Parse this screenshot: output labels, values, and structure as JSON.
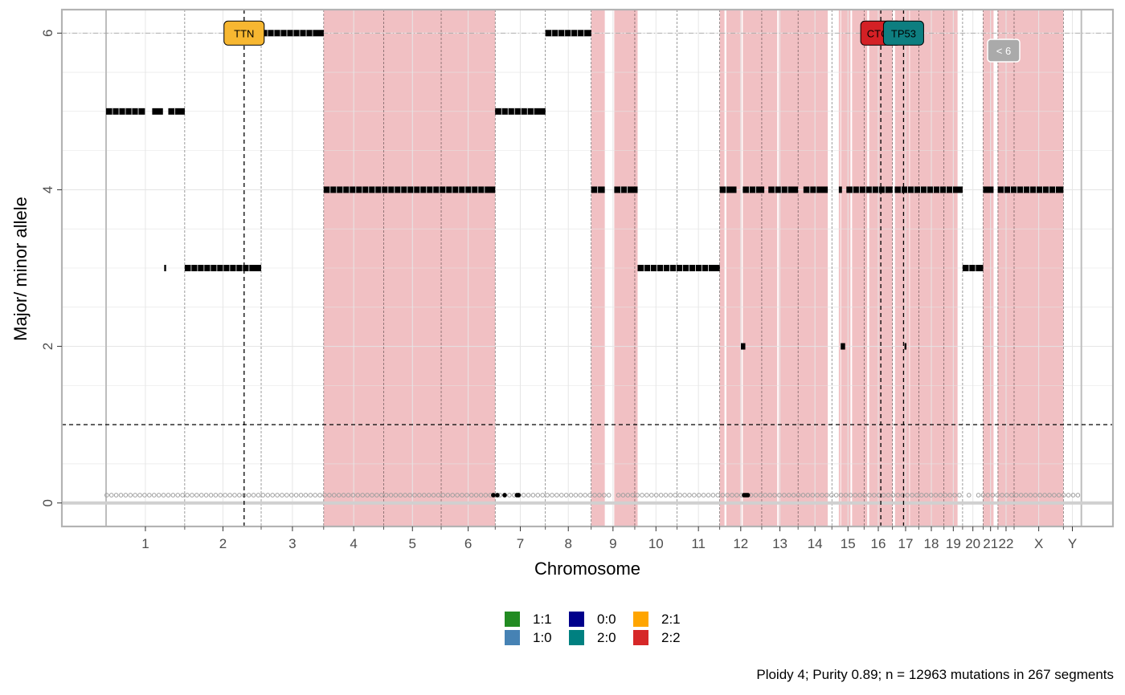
{
  "chart_data": {
    "type": "scatter",
    "xlabel": "Chromosome",
    "ylabel": "Major/ minor allele",
    "ylim": [
      -0.3,
      6.3
    ],
    "yticks": [
      0,
      2,
      4,
      6
    ],
    "grid": true,
    "legend_position": "bottom",
    "caption": "Ploidy 4; Purity  0.89; n = 12963 mutations in 267 segments",
    "chromosomes": [
      {
        "label": "1",
        "start": 0,
        "end": 249
      },
      {
        "label": "2",
        "start": 249,
        "end": 491
      },
      {
        "label": "3",
        "start": 491,
        "end": 689
      },
      {
        "label": "4",
        "start": 689,
        "end": 879
      },
      {
        "label": "5",
        "start": 879,
        "end": 1061
      },
      {
        "label": "6",
        "start": 1061,
        "end": 1232
      },
      {
        "label": "7",
        "start": 1232,
        "end": 1391
      },
      {
        "label": "8",
        "start": 1391,
        "end": 1536
      },
      {
        "label": "9",
        "start": 1536,
        "end": 1674
      },
      {
        "label": "10",
        "start": 1674,
        "end": 1808
      },
      {
        "label": "11",
        "start": 1808,
        "end": 1943
      },
      {
        "label": "12",
        "start": 1943,
        "end": 2076
      },
      {
        "label": "13",
        "start": 2076,
        "end": 2191
      },
      {
        "label": "14",
        "start": 2191,
        "end": 2298
      },
      {
        "label": "15",
        "start": 2298,
        "end": 2400
      },
      {
        "label": "16",
        "start": 2400,
        "end": 2490
      },
      {
        "label": "17",
        "start": 2490,
        "end": 2573
      },
      {
        "label": "18",
        "start": 2573,
        "end": 2653
      },
      {
        "label": "19",
        "start": 2653,
        "end": 2712
      },
      {
        "label": "20",
        "start": 2712,
        "end": 2777
      },
      {
        "label": "21",
        "start": 2777,
        "end": 2824
      },
      {
        "label": "22",
        "start": 2824,
        "end": 2875
      },
      {
        "label": "X",
        "start": 2875,
        "end": 3031
      },
      {
        "label": "Y",
        "start": 3031,
        "end": 3088
      }
    ],
    "ploidy_line": 6,
    "reference_line": 1,
    "highlight_regions": [
      [
        689,
        1232
      ],
      [
        1536,
        1579
      ],
      [
        1609,
        1683
      ],
      [
        1943,
        1958
      ],
      [
        1964,
        2012
      ],
      [
        2016,
        2125
      ],
      [
        2130,
        2285
      ],
      [
        2320,
        2325
      ],
      [
        2327,
        2357
      ],
      [
        2362,
        2410
      ],
      [
        2416,
        2490
      ],
      [
        2498,
        2543
      ],
      [
        2545,
        2696
      ],
      [
        2777,
        2810
      ],
      [
        2823,
        3031
      ]
    ],
    "segments": [
      {
        "x0": 0,
        "x1": 123,
        "y": 5
      },
      {
        "x0": 146,
        "x1": 180,
        "y": 5
      },
      {
        "x0": 197,
        "x1": 249,
        "y": 5
      },
      {
        "x0": 249,
        "x1": 491,
        "y": 3
      },
      {
        "x0": 491,
        "x1": 689,
        "y": 6
      },
      {
        "x0": 689,
        "x1": 1232,
        "y": 4
      },
      {
        "x0": 1232,
        "x1": 1391,
        "y": 5
      },
      {
        "x0": 1391,
        "x1": 1536,
        "y": 6
      },
      {
        "x0": 1536,
        "x1": 1579,
        "y": 4
      },
      {
        "x0": 1609,
        "x1": 1683,
        "y": 4
      },
      {
        "x0": 1683,
        "x1": 1943,
        "y": 3
      },
      {
        "x0": 1943,
        "x1": 1996,
        "y": 4
      },
      {
        "x0": 2016,
        "x1": 2084,
        "y": 4
      },
      {
        "x0": 2097,
        "x1": 2191,
        "y": 4
      },
      {
        "x0": 2208,
        "x1": 2285,
        "y": 4
      },
      {
        "x0": 2320,
        "x1": 2330,
        "y": 4
      },
      {
        "x0": 2344,
        "x1": 2490,
        "y": 4
      },
      {
        "x0": 2497,
        "x1": 2712,
        "y": 4
      },
      {
        "x0": 2712,
        "x1": 2777,
        "y": 3
      },
      {
        "x0": 2777,
        "x1": 2810,
        "y": 4
      },
      {
        "x0": 2823,
        "x1": 3031,
        "y": 4
      },
      {
        "x0": 2010,
        "x1": 2024,
        "y": 2
      },
      {
        "x0": 2326,
        "x1": 2340,
        "y": 2
      },
      {
        "x0": 184,
        "x1": 190,
        "y": 3
      },
      {
        "x0": 2528,
        "x1": 2534,
        "y": 2
      }
    ],
    "mutation_points": [
      {
        "x": 1226,
        "y": 0.1,
        "color": "#000000"
      },
      {
        "x": 1239,
        "y": 0.1,
        "color": "#000000"
      },
      {
        "x": 1262,
        "y": 0.1,
        "color": "#000000"
      },
      {
        "x": 1301,
        "y": 0.1,
        "color": "#000000"
      },
      {
        "x": 1306,
        "y": 0.1,
        "color": "#000000"
      },
      {
        "x": 2020,
        "y": 0.1,
        "color": "#000000"
      },
      {
        "x": 2026,
        "y": 0.1,
        "color": "#000000"
      },
      {
        "x": 2032,
        "y": 0.1,
        "color": "#000000"
      }
    ],
    "driver_genes": [
      {
        "name": "TTN",
        "x": 437,
        "y": 6,
        "color": "#F7B731"
      },
      {
        "name": "CTCF",
        "x": 2453,
        "y": 6,
        "color": "#D42025"
      },
      {
        "name": "TP53",
        "x": 2525,
        "y": 6,
        "color": "#0E7E80"
      }
    ],
    "extra_tag": {
      "label": "< 6",
      "color": "#AAAAAA"
    },
    "legend": [
      {
        "label": "1:1",
        "color": "#228B22"
      },
      {
        "label": "1:0",
        "color": "#4682B4"
      },
      {
        "label": "0:0",
        "color": "#00008B"
      },
      {
        "label": "2:0",
        "color": "#008080"
      },
      {
        "label": "2:1",
        "color": "#FFA500"
      },
      {
        "label": "2:2",
        "color": "#D62728"
      }
    ]
  }
}
